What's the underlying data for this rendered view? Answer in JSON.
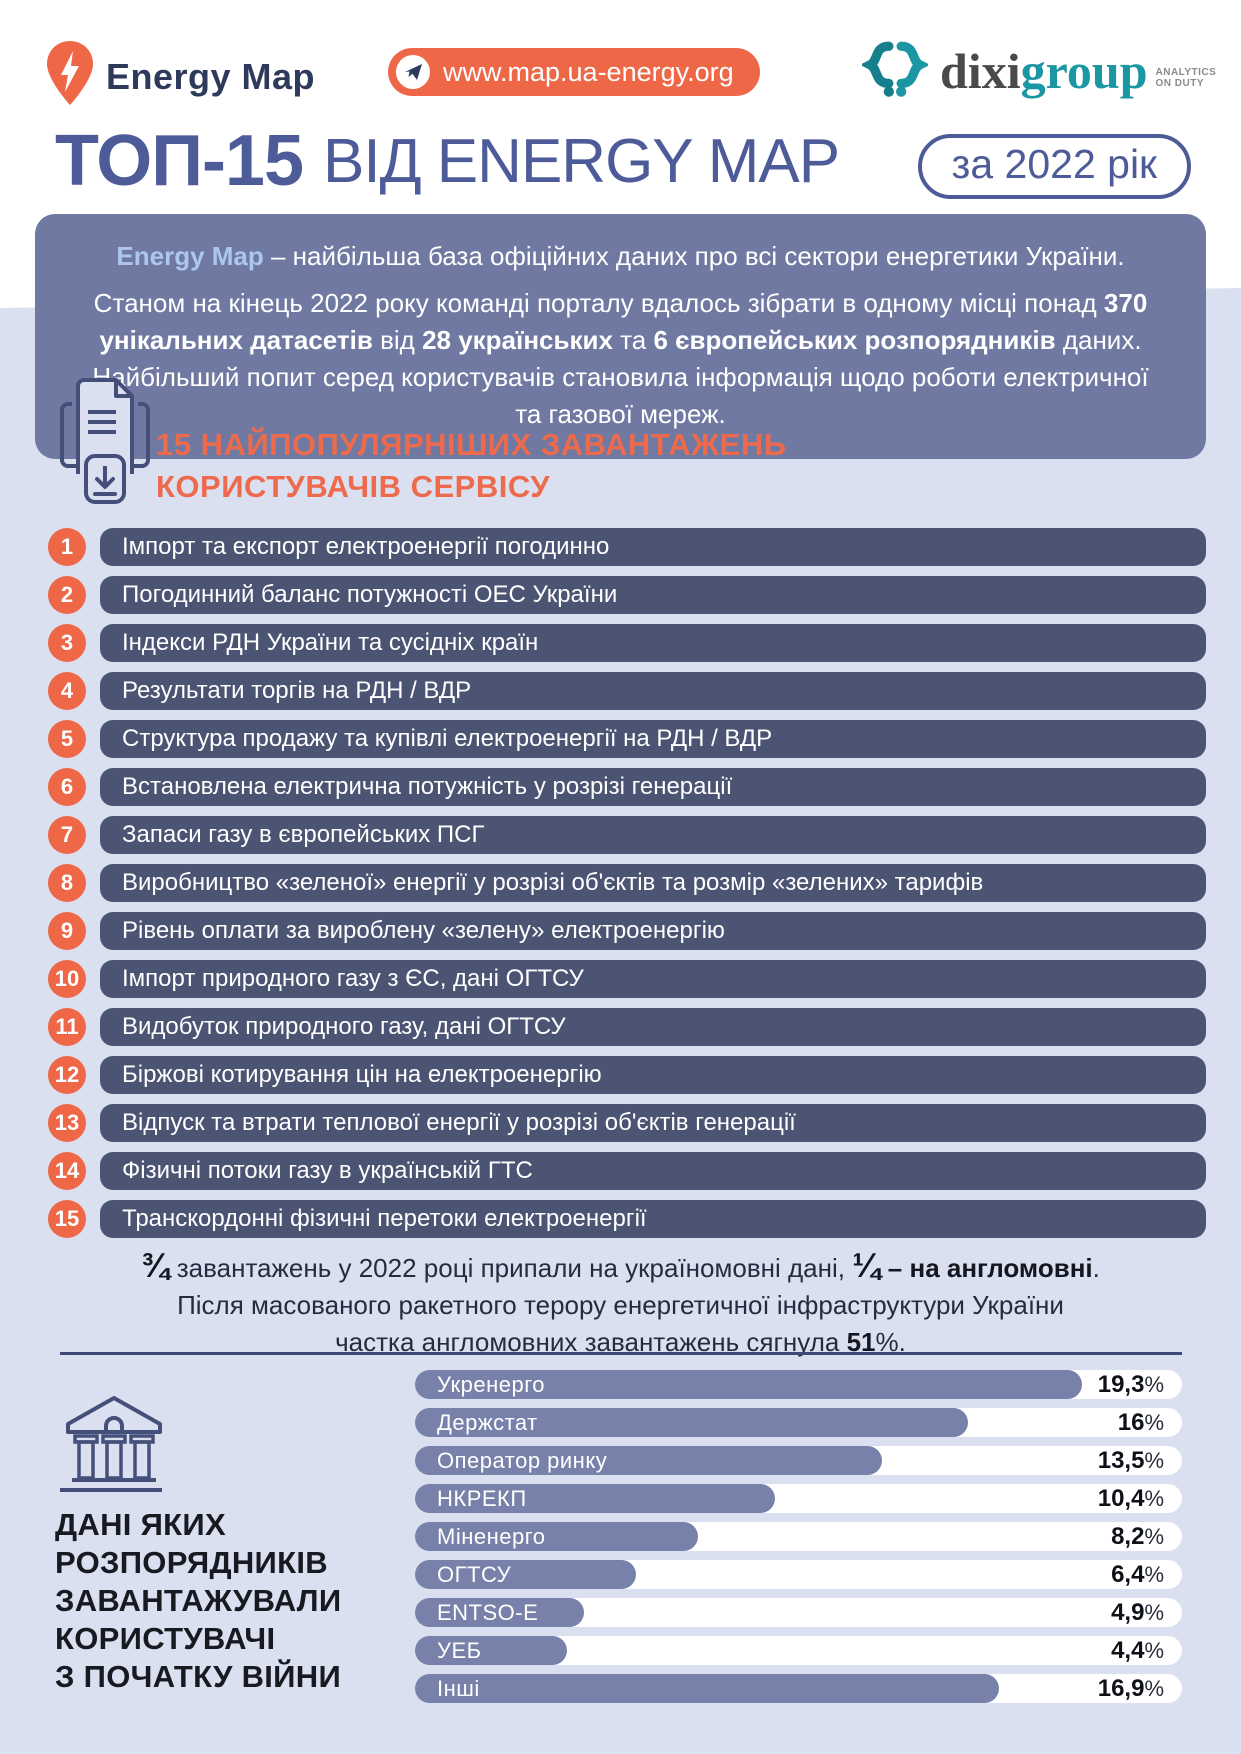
{
  "colors": {
    "orange": "#ee6747",
    "orange_heading": "#ee6a4c",
    "navy_title": "#4d5b99",
    "navy_text": "#2d3a5c",
    "intro_box": "#6f79a2",
    "intro_accent": "#abc7f0",
    "list_pill": "#4b5472",
    "chart_bar": "#7781a9",
    "lavender_bg": "#dbe0f1",
    "teal": "#1b96a3",
    "dark_text": "#181a22"
  },
  "header": {
    "brand": "Energy Map",
    "url": "www.map.ua-energy.org",
    "partner": {
      "dixi": "dixi",
      "group": "group",
      "tagline_line1": "ANALYTICS",
      "tagline_line2": "ON DUTY"
    }
  },
  "title": {
    "main": "ТОП-15",
    "rest": "ВІД ENERGY MAP",
    "badge": "за 2022 рік"
  },
  "intro": {
    "p1": [
      {
        "t": "Energy Map",
        "accent": true
      },
      {
        "t": " – найбільша база офіційних даних про всі сектори енергетики України."
      }
    ],
    "p2": [
      {
        "t": "Станом на кінець 2022 року команді порталу вдалось зібрати в одному місці понад "
      },
      {
        "t": "370 унікальних датасетів",
        "b": true
      },
      {
        "t": " від "
      },
      {
        "t": "28 українських",
        "b": true
      },
      {
        "t": " та "
      },
      {
        "t": "6 європейських розпорядників",
        "b": true
      },
      {
        "t": " даних. Найбільший попит серед користувачів становила інформація щодо роботи електричної та газової мереж."
      }
    ]
  },
  "top_list": {
    "heading_line1": "15 НАЙПОПУЛЯРНІШИХ ЗАВАНТАЖЕНЬ",
    "heading_line2": "КОРИСТУВАЧІВ СЕРВІСУ",
    "items": [
      "Імпорт та експорт електроенергії погодинно",
      "Погодинний баланс потужності ОЕС України",
      "Індекси РДН України та сусідніх країн",
      "Результати торгів на РДН / ВДР",
      "Структура продажу та купівлі електроенергії на РДН / ВДР",
      "Встановлена електрична потужність у розрізі генерації",
      "Запаси газу в європейських ПСГ",
      "Виробництво «зеленої» енергії у розрізі об'єктів та розмір «зелених» тарифів",
      "Рівень оплати за вироблену «зелену» електроенергію",
      "Імпорт природного газу з ЄС, дані ОГТСУ",
      "Видобуток природного газу, дані ОГТСУ",
      "Біржові котирування цін на електроенергію",
      "Відпуск та втрати теплової енергії у розрізі об'єктів генерації",
      "Фізичні потоки газу в українській ГТС",
      "Транскордонні фізичні перетоки електроенергії"
    ]
  },
  "note": {
    "line1": [
      {
        "t": "¾",
        "b": true,
        "frac": true
      },
      {
        "t": " завантажень у 2022 році припали на україномовні дані, "
      },
      {
        "t": "¼",
        "b": true,
        "frac": true
      },
      {
        "t": " – на англомовні",
        "b": true
      },
      {
        "t": "."
      }
    ],
    "line2": [
      {
        "t": "Після масованого ракетного терору енергетичної інфраструктури України"
      }
    ],
    "line3": [
      {
        "t": "частка англомовних завантажень сягнула "
      },
      {
        "t": "51",
        "b": true
      },
      {
        "t": "%."
      }
    ]
  },
  "bottom": {
    "heading_lines": [
      "ДАНІ ЯКИХ",
      "РОЗПОРЯДНИКІВ",
      "ЗАВАНТАЖУВАЛИ",
      "КОРИСТУВАЧІ",
      "З ПОЧАТКУ ВІЙНИ"
    ]
  },
  "chart_data": {
    "type": "bar",
    "orientation": "horizontal",
    "title": "ДАНІ ЯКИХ РОЗПОРЯДНИКІВ ЗАВАНТАЖУВАЛИ КОРИСТУВАЧІ З ПОЧАТКУ ВІЙНИ",
    "categories": [
      "Укренерго",
      "Держстат",
      "Оператор ринку",
      "НКРЕКП",
      "Міненерго",
      "ОГТСУ",
      "ENTSO-E",
      "УЕБ",
      "Інші"
    ],
    "values": [
      19.3,
      16,
      13.5,
      10.4,
      8.2,
      6.4,
      4.9,
      4.4,
      16.9
    ],
    "value_labels": [
      "19,3%",
      "16%",
      "13,5%",
      "10,4%",
      "8,2%",
      "6,4%",
      "4,9%",
      "4,4%",
      "16,9%"
    ],
    "xlim": [
      0,
      20
    ],
    "grid": false,
    "legend": "none"
  }
}
